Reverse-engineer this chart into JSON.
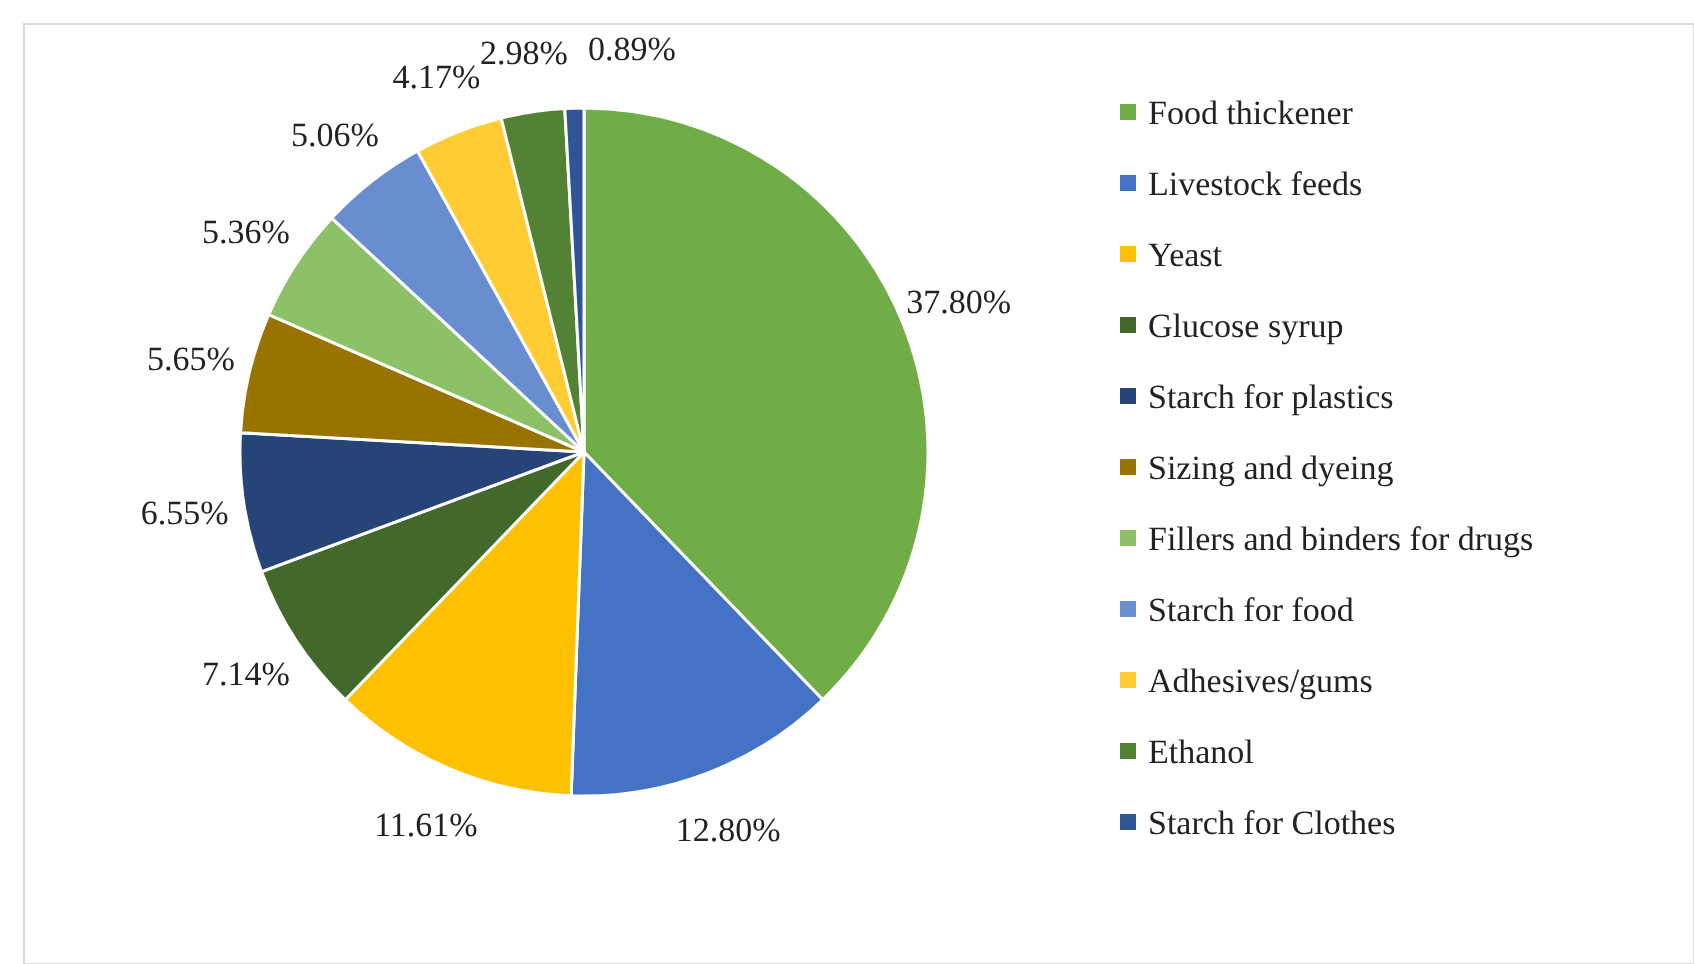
{
  "chart_data": {
    "type": "pie",
    "categories": [
      "Food thickener",
      "Livestock feeds",
      "Yeast",
      "Glucose syrup",
      "Starch for plastics",
      "Sizing and dyeing",
      "Fillers and binders for drugs",
      "Starch for food",
      "Adhesives/gums",
      "Ethanol",
      "Starch for Clothes"
    ],
    "values": [
      37.8,
      12.8,
      11.61,
      7.14,
      6.55,
      5.65,
      5.36,
      5.06,
      4.17,
      2.98,
      0.89
    ],
    "value_labels": [
      "37.80%",
      "12.80%",
      "11.61%",
      "7.14%",
      "6.55%",
      "5.65%",
      "5.36%",
      "5.06%",
      "4.17%",
      "2.98%",
      "0.89%"
    ],
    "colors": [
      "#70ad47",
      "#4472c4",
      "#ffc000",
      "#43682b",
      "#264478",
      "#997300",
      "#8cc168",
      "#698ed0",
      "#ffcd33",
      "#548235",
      "#2f5597"
    ],
    "legend": "right"
  }
}
